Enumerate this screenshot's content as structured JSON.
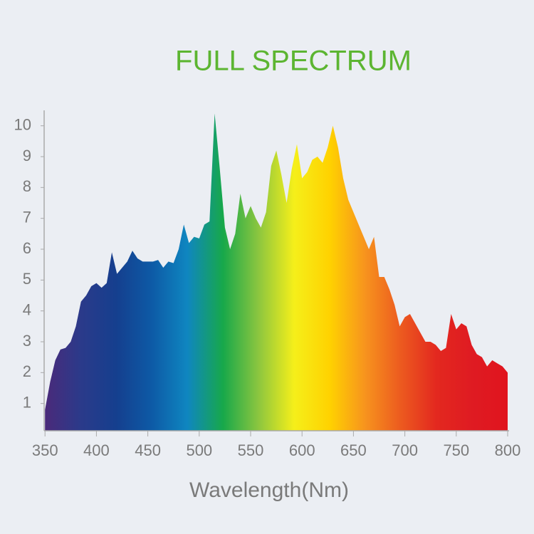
{
  "chart_data": {
    "type": "area",
    "title": "FULL SPECTRUM",
    "x_label": "Wavelength(Nm)",
    "x": [
      350,
      355,
      360,
      365,
      370,
      375,
      380,
      385,
      390,
      395,
      400,
      405,
      410,
      415,
      420,
      425,
      430,
      435,
      440,
      445,
      450,
      455,
      460,
      465,
      470,
      475,
      480,
      485,
      490,
      495,
      500,
      505,
      510,
      515,
      520,
      525,
      530,
      535,
      540,
      545,
      550,
      555,
      560,
      565,
      570,
      575,
      580,
      585,
      590,
      595,
      600,
      605,
      610,
      615,
      620,
      625,
      630,
      635,
      640,
      645,
      650,
      655,
      660,
      665,
      670,
      675,
      680,
      685,
      690,
      695,
      700,
      705,
      710,
      715,
      720,
      725,
      730,
      735,
      740,
      745,
      750,
      755,
      760,
      765,
      770,
      775,
      780,
      785,
      790,
      795,
      800
    ],
    "values": [
      0.8,
      1.7,
      2.4,
      2.75,
      2.8,
      3.0,
      3.5,
      4.3,
      4.5,
      4.8,
      4.9,
      4.75,
      4.9,
      5.9,
      5.2,
      5.4,
      5.6,
      5.95,
      5.7,
      5.6,
      5.6,
      5.6,
      5.65,
      5.4,
      5.6,
      5.55,
      6.0,
      6.8,
      6.2,
      6.4,
      6.35,
      6.8,
      6.9,
      10.4,
      8.6,
      6.7,
      6.0,
      6.5,
      7.8,
      7.0,
      7.4,
      7.0,
      6.7,
      7.2,
      8.7,
      9.2,
      8.4,
      7.5,
      8.6,
      9.4,
      8.3,
      8.5,
      8.9,
      9.0,
      8.8,
      9.3,
      10.0,
      9.3,
      8.3,
      7.6,
      7.2,
      6.8,
      6.4,
      6.0,
      6.4,
      5.1,
      5.1,
      4.7,
      4.2,
      3.5,
      3.8,
      3.9,
      3.6,
      3.3,
      3.0,
      3.0,
      2.9,
      2.7,
      2.8,
      3.9,
      3.4,
      3.6,
      3.5,
      2.9,
      2.6,
      2.5,
      2.2,
      2.4,
      2.3,
      2.2,
      2.0
    ],
    "gradient": [
      "#4a2a7a",
      "#2b3a8a",
      "#153f8e",
      "#0d5aa6",
      "#0f86c0",
      "#17a84a",
      "#8cc63f",
      "#f5ef1a",
      "#ffd200",
      "#f7931e",
      "#ec5a1f",
      "#e3281f",
      "#df1b22",
      "#e0141e"
    ],
    "title_color": "#5cb531",
    "xlim": [
      345,
      800
    ],
    "ylim": [
      0,
      10.5
    ],
    "xticks": [
      350,
      400,
      450,
      500,
      550,
      600,
      650,
      700,
      750,
      800
    ],
    "yticks": [
      1,
      2,
      3,
      4,
      5,
      6,
      7,
      8,
      9,
      10
    ]
  }
}
